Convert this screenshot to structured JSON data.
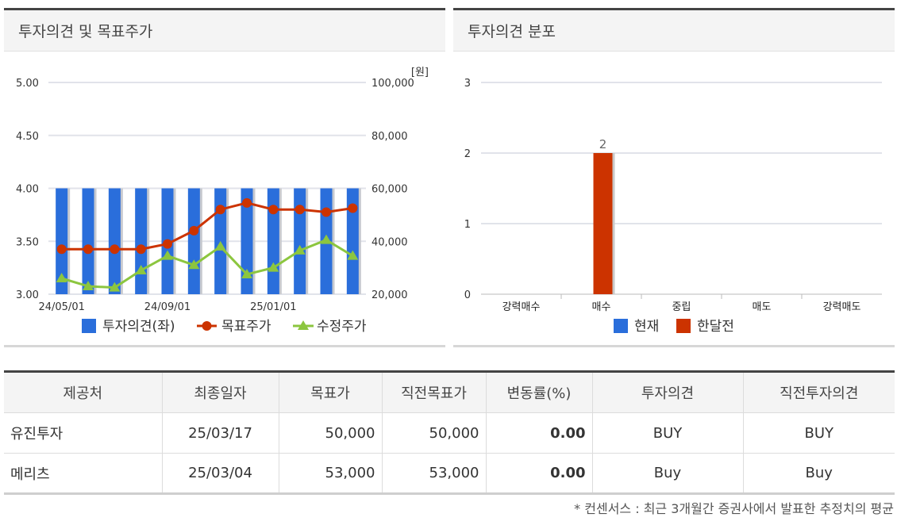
{
  "chart_data": [
    {
      "type": "bar+line",
      "title": "투자의견 및 목표주가",
      "unit_label": "[원]",
      "x_ticks": [
        "24/05/01",
        "24/09/01",
        "25/01/01"
      ],
      "left_axis": {
        "ylim": [
          3.0,
          5.0
        ],
        "ticks": [
          "3.00",
          "3.50",
          "4.00",
          "4.50",
          "5.00"
        ]
      },
      "right_axis": {
        "ylim": [
          20000,
          100000
        ],
        "ticks": [
          "20,000",
          "40,000",
          "60,000",
          "80,000",
          "100,000"
        ]
      },
      "grid": true,
      "legend_position": "bottom",
      "series": [
        {
          "name": "투자의견(좌)",
          "kind": "bar",
          "axis": "left",
          "color": "#2a6edb",
          "values": [
            4,
            4,
            4,
            4,
            4,
            4,
            4,
            4,
            4,
            4,
            4,
            4
          ]
        },
        {
          "name": "목표주가",
          "kind": "line",
          "axis": "right",
          "color": "#cc3300",
          "values": [
            37000,
            37000,
            37000,
            37000,
            39000,
            44000,
            52000,
            54500,
            52000,
            52000,
            51000,
            52500
          ]
        },
        {
          "name": "수정주가",
          "kind": "line",
          "axis": "right",
          "color": "#8cc63f",
          "values": [
            26000,
            23000,
            22500,
            29000,
            34500,
            31000,
            38000,
            27500,
            30000,
            36500,
            40500,
            34500
          ]
        }
      ]
    },
    {
      "type": "bar",
      "title": "투자의견 분포",
      "categories": [
        "강력매수",
        "매수",
        "중립",
        "매도",
        "강력매도"
      ],
      "ylim": [
        0,
        3
      ],
      "y_ticks": [
        "0",
        "1",
        "2",
        "3"
      ],
      "grid": true,
      "legend_position": "bottom",
      "series": [
        {
          "name": "현재",
          "color": "#2a6edb",
          "values": [
            0,
            0,
            0,
            0,
            0
          ]
        },
        {
          "name": "한달전",
          "color": "#cc3300",
          "values": [
            0,
            2,
            0,
            0,
            0
          ]
        }
      ]
    }
  ],
  "table": {
    "headers": [
      "제공처",
      "최종일자",
      "목표가",
      "직전목표가",
      "변동률(%)",
      "투자의견",
      "직전투자의견"
    ],
    "rows": [
      [
        "유진투자",
        "25/03/17",
        "50,000",
        "50,000",
        "0.00",
        "BUY",
        "BUY"
      ],
      [
        "메리츠",
        "25/03/04",
        "53,000",
        "53,000",
        "0.00",
        "Buy",
        "Buy"
      ]
    ]
  },
  "footnote": "* 컨센서스 : 최근 3개월간 증권사에서 발표한 추정치의 평균"
}
